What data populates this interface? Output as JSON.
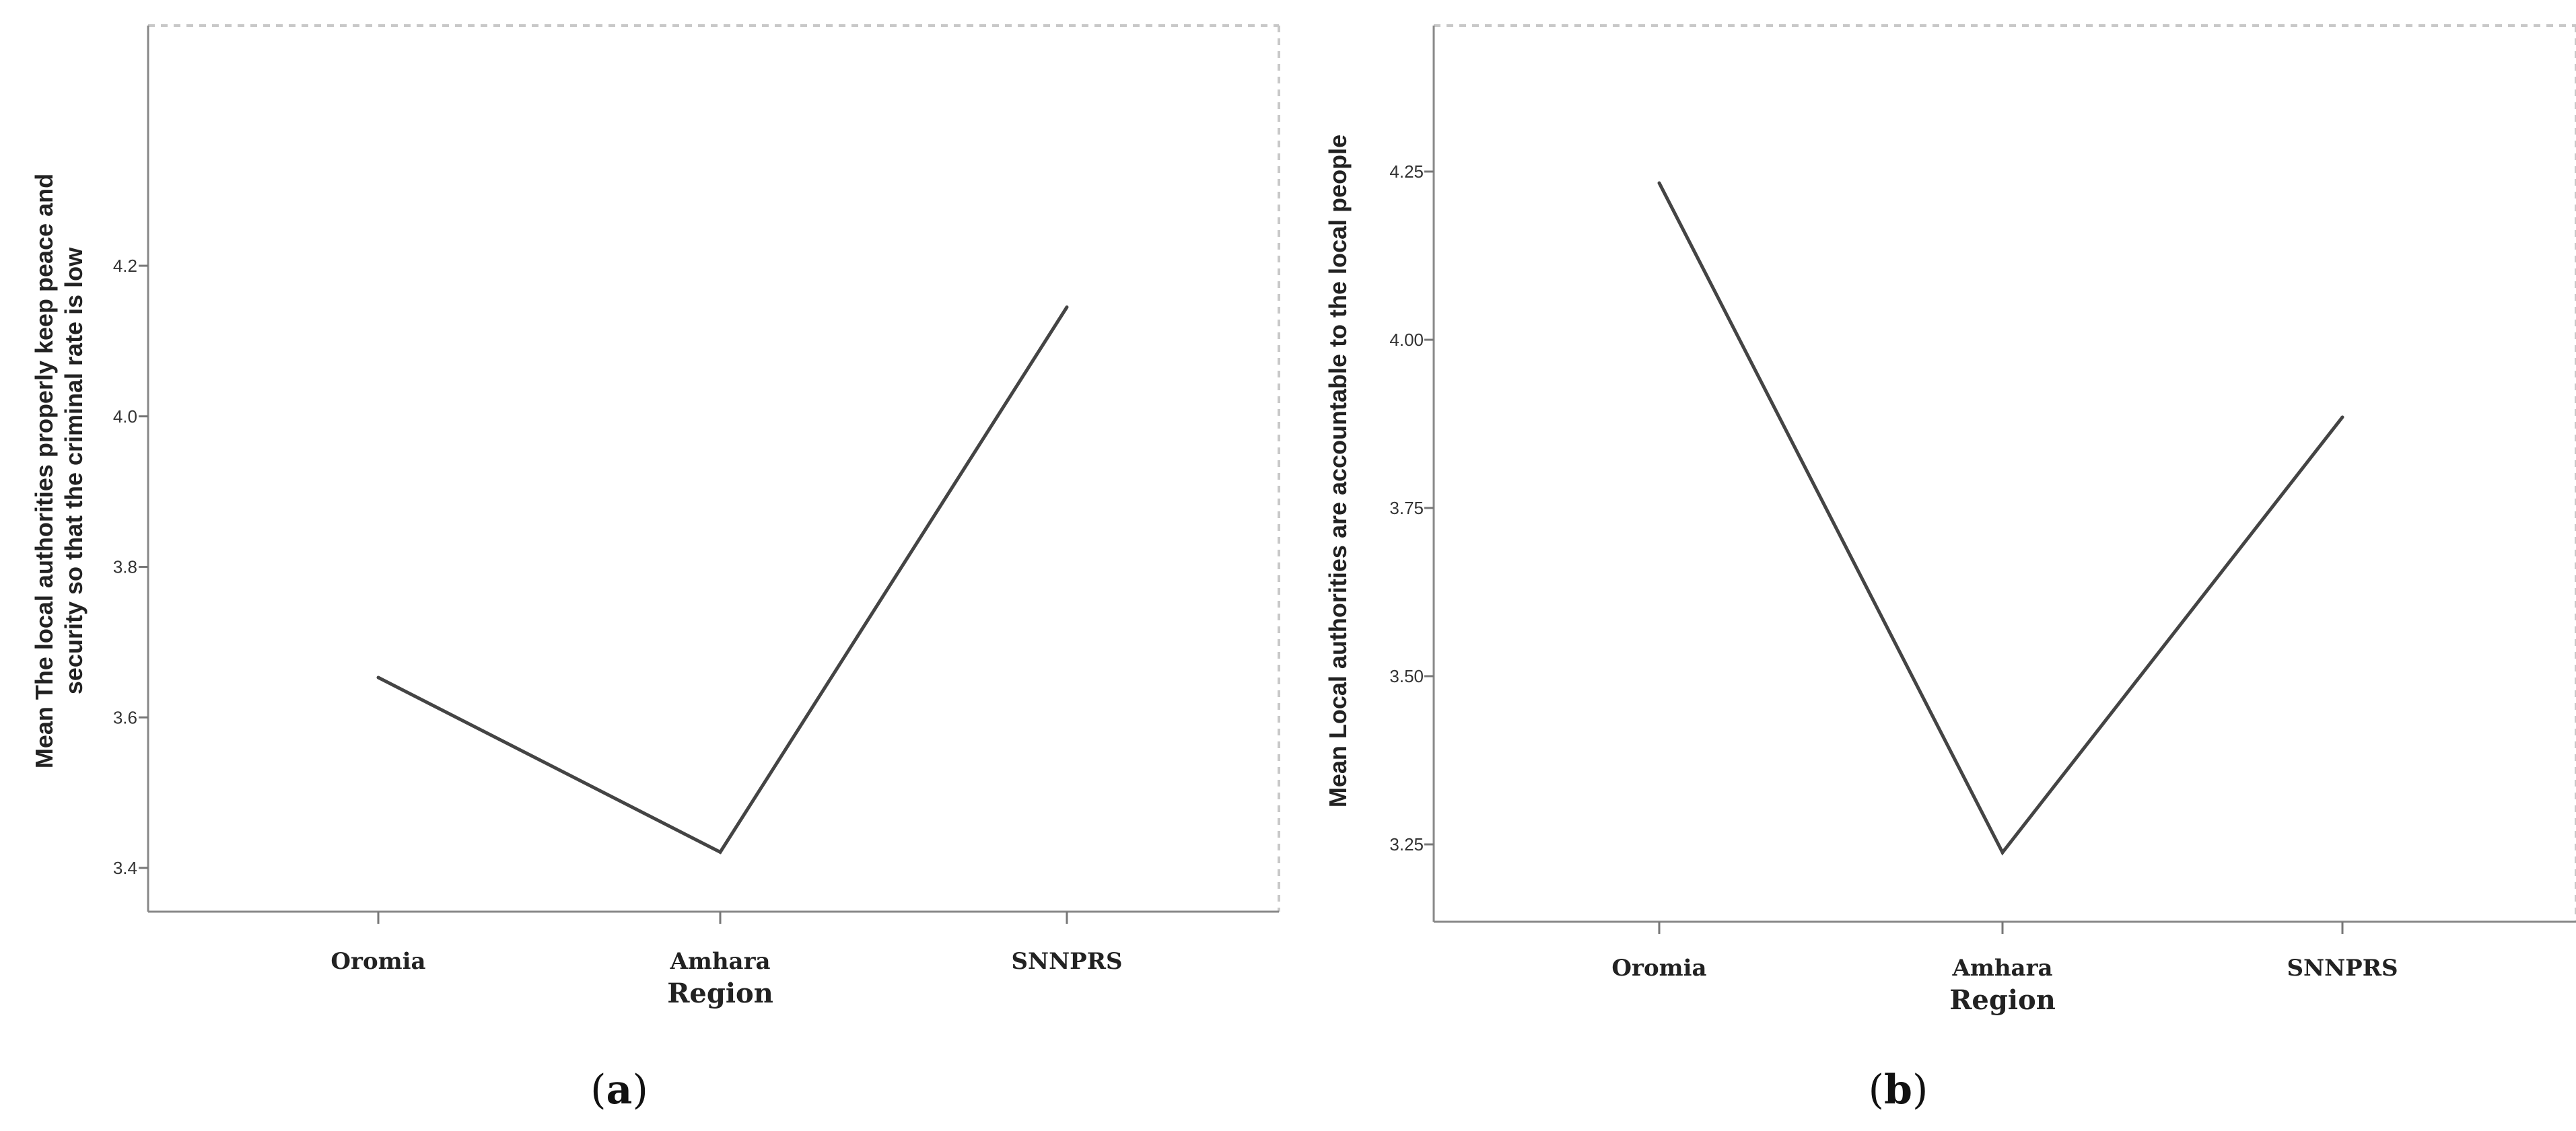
{
  "chart_data": [
    {
      "type": "line",
      "panel_label": "a",
      "categories": [
        "Oromia",
        "Amhara",
        "SNNPRS"
      ],
      "series": [
        {
          "values": [
            3.653,
            3.421,
            4.145
          ]
        }
      ],
      "xlabel": "Region",
      "ylabel_lines": [
        "Mean The local authorities properly keep  peace and",
        "security so that the criminal rate is low"
      ],
      "ylim": [
        3.36,
        4.22
      ],
      "yticks": [
        3.4,
        3.6,
        3.8,
        4.0,
        4.2
      ],
      "ytick_labels": [
        "3.4",
        "3.6",
        "3.8",
        "4.0",
        "4.2"
      ],
      "line_color": "#444444",
      "grid": false
    },
    {
      "type": "line",
      "panel_label": "b",
      "categories": [
        "Oromia",
        "Amhara",
        "SNNPRS"
      ],
      "series": [
        {
          "values": [
            4.233,
            3.238,
            3.885
          ]
        }
      ],
      "xlabel": "Region",
      "ylabel_lines": [
        "Mean Local authorities are accountable to the local people"
      ],
      "ylim": [
        3.13,
        4.41
      ],
      "yticks": [
        3.25,
        3.5,
        3.75,
        4.0,
        4.25
      ],
      "ytick_labels": [
        "3.25",
        "3.50",
        "3.75",
        "4.00",
        "4.25"
      ],
      "line_color": "#444444",
      "grid": false
    }
  ]
}
